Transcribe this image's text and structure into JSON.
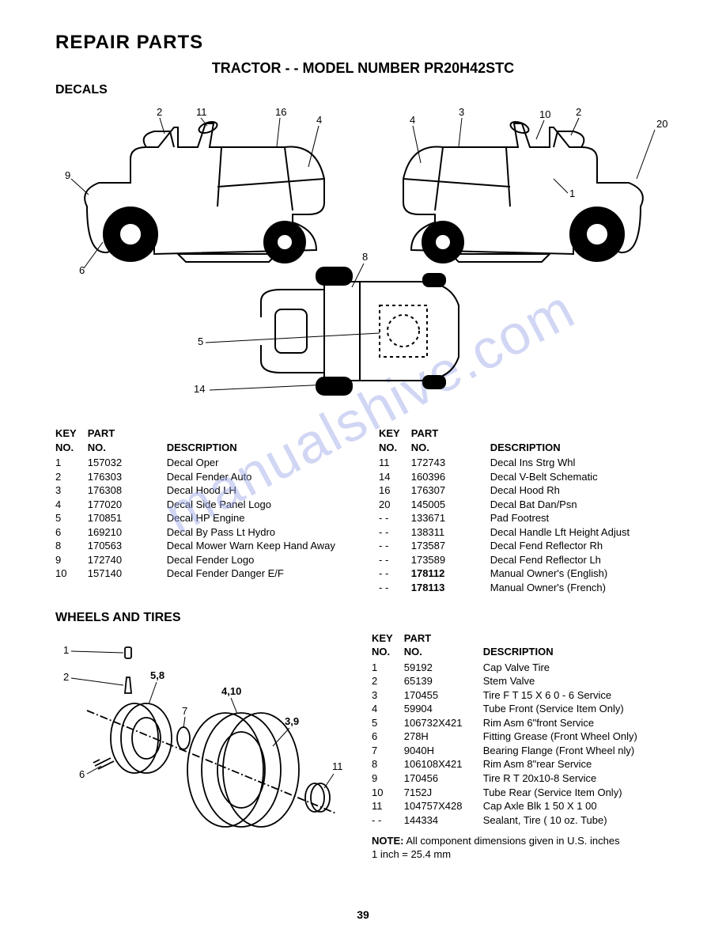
{
  "page": {
    "title_main": "REPAIR PARTS",
    "title_sub": "TRACTOR - - MODEL NUMBER PR20H42STC",
    "section_decals": "DECALS",
    "section_wheels": "WHEELS AND TIRES",
    "page_number": "39",
    "watermark": "manualshive.com"
  },
  "headers": {
    "key_no": "KEY NO.",
    "part_no": "PART NO.",
    "description": "DESCRIPTION"
  },
  "decals_diagram": {
    "callouts_left": [
      "2",
      "11",
      "16",
      "4",
      "9",
      "6"
    ],
    "callouts_right": [
      "4",
      "3",
      "10",
      "2",
      "20",
      "1"
    ],
    "callouts_top": [
      "8",
      "5",
      "14"
    ]
  },
  "decals_left": [
    {
      "key": "1",
      "part": "157032",
      "desc": "Decal Oper"
    },
    {
      "key": "2",
      "part": "176303",
      "desc": "Decal Fender Auto"
    },
    {
      "key": "3",
      "part": "176308",
      "desc": "Decal Hood LH"
    },
    {
      "key": "4",
      "part": "177020",
      "desc": "Decal Side Panel Logo"
    },
    {
      "key": "5",
      "part": "170851",
      "desc": "Decal HP Engine"
    },
    {
      "key": "6",
      "part": "169210",
      "desc": "Decal By Pass Lt Hydro"
    },
    {
      "key": "8",
      "part": "170563",
      "desc": "Decal Mower Warn Keep Hand Away"
    },
    {
      "key": "9",
      "part": "172740",
      "desc": "Decal Fender Logo"
    },
    {
      "key": "10",
      "part": "157140",
      "desc": "Decal Fender Danger E/F"
    }
  ],
  "decals_right": [
    {
      "key": "11",
      "part": "172743",
      "desc": "Decal Ins Strg Whl"
    },
    {
      "key": "14",
      "part": "160396",
      "desc": "Decal V-Belt  Schematic"
    },
    {
      "key": "16",
      "part": "176307",
      "desc": "Decal Hood Rh"
    },
    {
      "key": "20",
      "part": "145005",
      "desc": "Decal Bat Dan/Psn"
    },
    {
      "key": "- -",
      "part": "133671",
      "desc": "Pad Footrest"
    },
    {
      "key": "- -",
      "part": "138311",
      "desc": "Decal Handle Lft Height Adjust"
    },
    {
      "key": "- -",
      "part": "173587",
      "desc": "Decal Fend Reflector Rh"
    },
    {
      "key": "- -",
      "part": "173589",
      "desc": "Decal Fend Reflector Lh"
    },
    {
      "key": "- -",
      "part": "178112",
      "desc": "Manual Owner's (English)",
      "bold_part": true
    },
    {
      "key": "- -",
      "part": "178113",
      "desc": "Manual Owner's (French)",
      "bold_part": true
    }
  ],
  "wheels_diagram": {
    "callouts": [
      "1",
      "2",
      "5,8",
      "4,10",
      "7",
      "6",
      "3,9",
      "11"
    ]
  },
  "wheels": [
    {
      "key": "1",
      "part": "59192",
      "desc": "Cap Valve Tire"
    },
    {
      "key": "2",
      "part": "65139",
      "desc": "Stem Valve"
    },
    {
      "key": "3",
      "part": "170455",
      "desc": "Tire F T 15 X 6 0 - 6 Service"
    },
    {
      "key": "4",
      "part": "59904",
      "desc": "Tube Front (Service Item Only)"
    },
    {
      "key": "5",
      "part": "106732X421",
      "desc": "Rim Asm 6\"front Service"
    },
    {
      "key": "6",
      "part": "278H",
      "desc": "Fitting Grease (Front Wheel Only)"
    },
    {
      "key": "7",
      "part": "9040H",
      "desc": "Bearing Flange (Front Wheel nly)"
    },
    {
      "key": "8",
      "part": "106108X421",
      "desc": "Rim Asm 8\"rear Service"
    },
    {
      "key": "9",
      "part": "170456",
      "desc": "Tire R T 20x10-8 Service"
    },
    {
      "key": "10",
      "part": "7152J",
      "desc": "Tube Rear (Service Item Only)"
    },
    {
      "key": "11",
      "part": "104757X428",
      "desc": "Cap Axle Blk 1 50 X 1 00"
    },
    {
      "key": "- -",
      "part": "144334",
      "desc": "Sealant, Tire ( 10 oz. Tube)"
    }
  ],
  "note": {
    "label": "NOTE:",
    "text": "All component dimensions given in U.S. inches",
    "sub": "1 inch = 25.4 mm"
  },
  "style": {
    "text_color": "#000000",
    "bg_color": "#ffffff",
    "watermark_color": "#9aa6e8",
    "font_family": "Arial",
    "title_fontsize_pt": 18,
    "sub_fontsize_pt": 14,
    "body_fontsize_pt": 10,
    "diagram_stroke": "#000000",
    "diagram_stroke_width": 2
  }
}
